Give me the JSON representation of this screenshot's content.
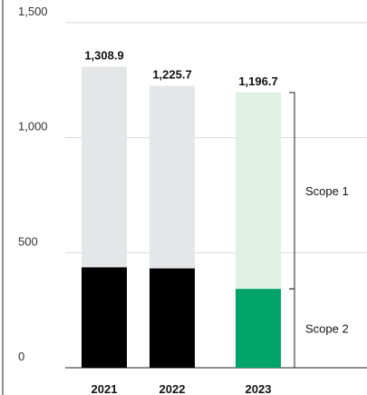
{
  "chart_data": {
    "type": "bar",
    "stacked": true,
    "categories": [
      "2021",
      "2022",
      "2023"
    ],
    "series": [
      {
        "name": "Scope 2",
        "values": [
          437,
          432,
          343
        ]
      },
      {
        "name": "Scope 1",
        "values": [
          871.9,
          793.7,
          853.7
        ]
      }
    ],
    "totals": [
      1308.9,
      1225.7,
      1196.7
    ],
    "total_labels": [
      "1,308.9",
      "1,225.7",
      "1,196.7"
    ],
    "ylim": [
      0,
      1500
    ],
    "y_ticks": [
      0,
      500,
      1000,
      1500
    ],
    "y_tick_labels": [
      "0",
      "500",
      "1,000",
      "1,500"
    ],
    "grid": true,
    "annotations": [
      "Scope 1",
      "Scope 2"
    ],
    "colors": {
      "scope2_default": "#000000",
      "scope1_default": "#e5e6e7",
      "scope2_highlight": "#00a369",
      "scope1_highlight": "#dff0e4",
      "grid": "#d9d9d9",
      "axis": "#222222"
    },
    "highlight_index": 2
  }
}
